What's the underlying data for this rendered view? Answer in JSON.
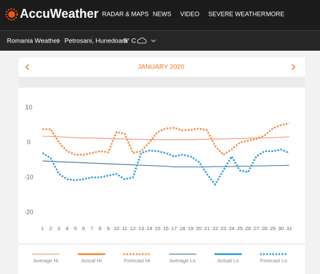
{
  "header": {
    "logo": "AccuWeather",
    "nav": [
      "RADAR & MAPS",
      "NEWS",
      "VIDEO",
      "SEVERE WEATHER",
      "MORE"
    ]
  },
  "breadcrumb": {
    "country": "Romania Weather",
    "location": "Petrosani, Hunedoara",
    "temperature": "5° C"
  },
  "chart_data": {
    "type": "line",
    "title": "JANUARY 2020",
    "x": [
      1,
      2,
      3,
      4,
      5,
      6,
      7,
      8,
      9,
      10,
      11,
      12,
      13,
      14,
      15,
      16,
      17,
      18,
      19,
      20,
      21,
      22,
      23,
      24,
      25,
      26,
      27,
      28,
      29,
      30,
      31
    ],
    "xlim": [
      0,
      32.5
    ],
    "ylim": [
      -23,
      13
    ],
    "yticks": [
      10,
      0,
      -10,
      -20
    ],
    "series": [
      {
        "name": "Average Hi",
        "color": "#f0a07a",
        "style": "thin",
        "values": [
          1.8,
          1.7,
          1.6,
          1.5,
          1.4,
          1.3,
          1.3,
          1.2,
          1.1,
          1.0,
          1.0,
          0.9,
          0.9,
          0.8,
          0.8,
          0.8,
          0.8,
          0.8,
          0.8,
          0.9,
          0.9,
          1.0,
          1.0,
          1.1,
          1.1,
          1.2,
          1.3,
          1.3,
          1.4,
          1.5,
          1.6
        ]
      },
      {
        "name": "Actual Hi",
        "color": "#f28a3c",
        "style": "thick",
        "values": [
          null,
          null,
          null,
          null,
          null,
          null,
          null,
          null,
          null,
          null,
          null,
          null,
          null,
          null,
          null,
          null,
          null,
          null,
          null,
          null,
          null,
          null,
          null,
          null,
          null,
          null,
          null,
          null,
          null,
          null,
          null
        ]
      },
      {
        "name": "Forecast Hi",
        "color": "#f28a3c",
        "style": "dotted",
        "values": [
          3.8,
          3.8,
          0,
          -2.5,
          -3.5,
          -3.5,
          -3,
          -2.5,
          -2.8,
          3,
          2.5,
          -3,
          -2.5,
          0,
          3,
          4,
          4.2,
          3.5,
          3.6,
          4,
          3.5,
          -1,
          -3.5,
          -2,
          0,
          0.5,
          1,
          2,
          4,
          5,
          5.5
        ]
      },
      {
        "name": "Average Lo",
        "color": "#4a7fa6",
        "style": "thin",
        "values": [
          -5.3,
          -5.4,
          -5.5,
          -5.6,
          -5.7,
          -5.8,
          -5.9,
          -6.0,
          -6.1,
          -6.2,
          -6.3,
          -6.4,
          -6.5,
          -6.6,
          -6.7,
          -6.8,
          -7.0,
          -7.0,
          -7.0,
          -7.0,
          -7.0,
          -6.9,
          -6.9,
          -6.9,
          -6.8,
          -6.8,
          -6.7,
          -6.7,
          -6.6,
          -6.6,
          -6.5
        ]
      },
      {
        "name": "Actual Lo",
        "color": "#2b9bd8",
        "style": "thick",
        "values": [
          null,
          null,
          null,
          null,
          null,
          null,
          null,
          null,
          null,
          null,
          null,
          null,
          null,
          null,
          null,
          null,
          null,
          null,
          null,
          null,
          null,
          null,
          null,
          null,
          null,
          null,
          null,
          null,
          null,
          null,
          null
        ]
      },
      {
        "name": "Forecast Lo",
        "color": "#2b9bd8",
        "style": "dotted",
        "values": [
          -3,
          -4.5,
          -9,
          -10.5,
          -10.8,
          -10.5,
          -10,
          -10,
          -9.5,
          -9,
          -10.5,
          -10,
          -3,
          -2.3,
          -2.5,
          -3,
          -4,
          -3.5,
          -4,
          -5.5,
          -9,
          -12,
          -8,
          -4,
          -8,
          -8.5,
          -4,
          -2.5,
          -2.5,
          -2,
          -3
        ]
      }
    ]
  }
}
